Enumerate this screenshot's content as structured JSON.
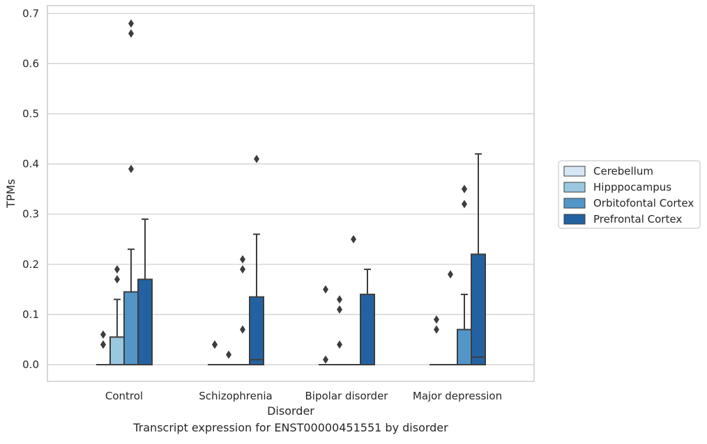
{
  "chart_data": {
    "type": "box",
    "xlabel": "Disorder",
    "ylabel": "TPMs",
    "ylim": [
      -0.033,
      0.715
    ],
    "yticks": [
      "0.0",
      "0.1",
      "0.2",
      "0.3",
      "0.4",
      "0.5",
      "0.6",
      "0.7"
    ],
    "ytick_values": [
      0,
      0.1,
      0.2,
      0.3,
      0.4,
      0.5,
      0.6,
      0.7
    ],
    "categories": [
      "Control",
      "Schizophrenia",
      "Bipolar disorder",
      "Major depression"
    ],
    "grid": "horizontal",
    "legend_position": "right",
    "series": [
      {
        "name": "Cerebellum",
        "color": "#d6e6f4",
        "boxes": [
          {
            "q1": 0,
            "median": 0,
            "q3": 0,
            "whisker_low": 0,
            "whisker_high": 0,
            "outliers": [
              0.04,
              0.04,
              0.06
            ]
          },
          {
            "q1": 0,
            "median": 0,
            "q3": 0,
            "whisker_low": 0,
            "whisker_high": 0,
            "outliers": [
              0.04,
              0.04
            ]
          },
          {
            "q1": 0,
            "median": 0,
            "q3": 0,
            "whisker_low": 0,
            "whisker_high": 0,
            "outliers": [
              0.01,
              0.15
            ]
          },
          {
            "q1": 0,
            "median": 0,
            "q3": 0,
            "whisker_low": 0,
            "whisker_high": 0,
            "outliers": [
              0.07,
              0.09
            ]
          }
        ]
      },
      {
        "name": "Hipppocampus",
        "color": "#9ac8e0",
        "boxes": [
          {
            "q1": 0,
            "median": 0,
            "q3": 0.055,
            "whisker_low": 0,
            "whisker_high": 0.13,
            "outliers": [
              0.17,
              0.19
            ]
          },
          {
            "q1": 0,
            "median": 0,
            "q3": 0,
            "whisker_low": 0,
            "whisker_high": 0,
            "outliers": [
              0.02
            ]
          },
          {
            "q1": 0,
            "median": 0,
            "q3": 0,
            "whisker_low": 0,
            "whisker_high": 0,
            "outliers": [
              0.04,
              0.11,
              0.13
            ]
          },
          {
            "q1": 0,
            "median": 0,
            "q3": 0,
            "whisker_low": 0,
            "whisker_high": 0,
            "outliers": [
              0.18
            ]
          }
        ]
      },
      {
        "name": "Orbitofontal Cortex",
        "color": "#5296c8",
        "boxes": [
          {
            "q1": 0,
            "median": 0,
            "q3": 0.145,
            "whisker_low": 0,
            "whisker_high": 0.23,
            "outliers": [
              0.39,
              0.66,
              0.68
            ]
          },
          {
            "q1": 0,
            "median": 0,
            "q3": 0,
            "whisker_low": 0,
            "whisker_high": 0,
            "outliers": [
              0.07,
              0.19,
              0.21
            ]
          },
          {
            "q1": 0,
            "median": 0,
            "q3": 0,
            "whisker_low": 0,
            "whisker_high": 0,
            "outliers": [
              0.25
            ]
          },
          {
            "q1": 0,
            "median": 0,
            "q3": 0.07,
            "whisker_low": 0,
            "whisker_high": 0.14,
            "outliers": [
              0.32,
              0.35,
              0.35
            ]
          }
        ]
      },
      {
        "name": "Prefrontal Cortex",
        "color": "#2362a2",
        "boxes": [
          {
            "q1": 0,
            "median": 0,
            "q3": 0.17,
            "whisker_low": 0,
            "whisker_high": 0.29,
            "outliers": []
          },
          {
            "q1": 0,
            "median": 0.01,
            "q3": 0.135,
            "whisker_low": 0,
            "whisker_high": 0.26,
            "outliers": [
              0.41
            ]
          },
          {
            "q1": 0,
            "median": 0,
            "q3": 0.14,
            "whisker_low": 0,
            "whisker_high": 0.19,
            "outliers": []
          },
          {
            "q1": 0,
            "median": 0.015,
            "q3": 0.22,
            "whisker_low": 0,
            "whisker_high": 0.42,
            "outliers": []
          }
        ]
      }
    ],
    "caption": "Transcript expression for ENST00000451551 by disorder"
  }
}
